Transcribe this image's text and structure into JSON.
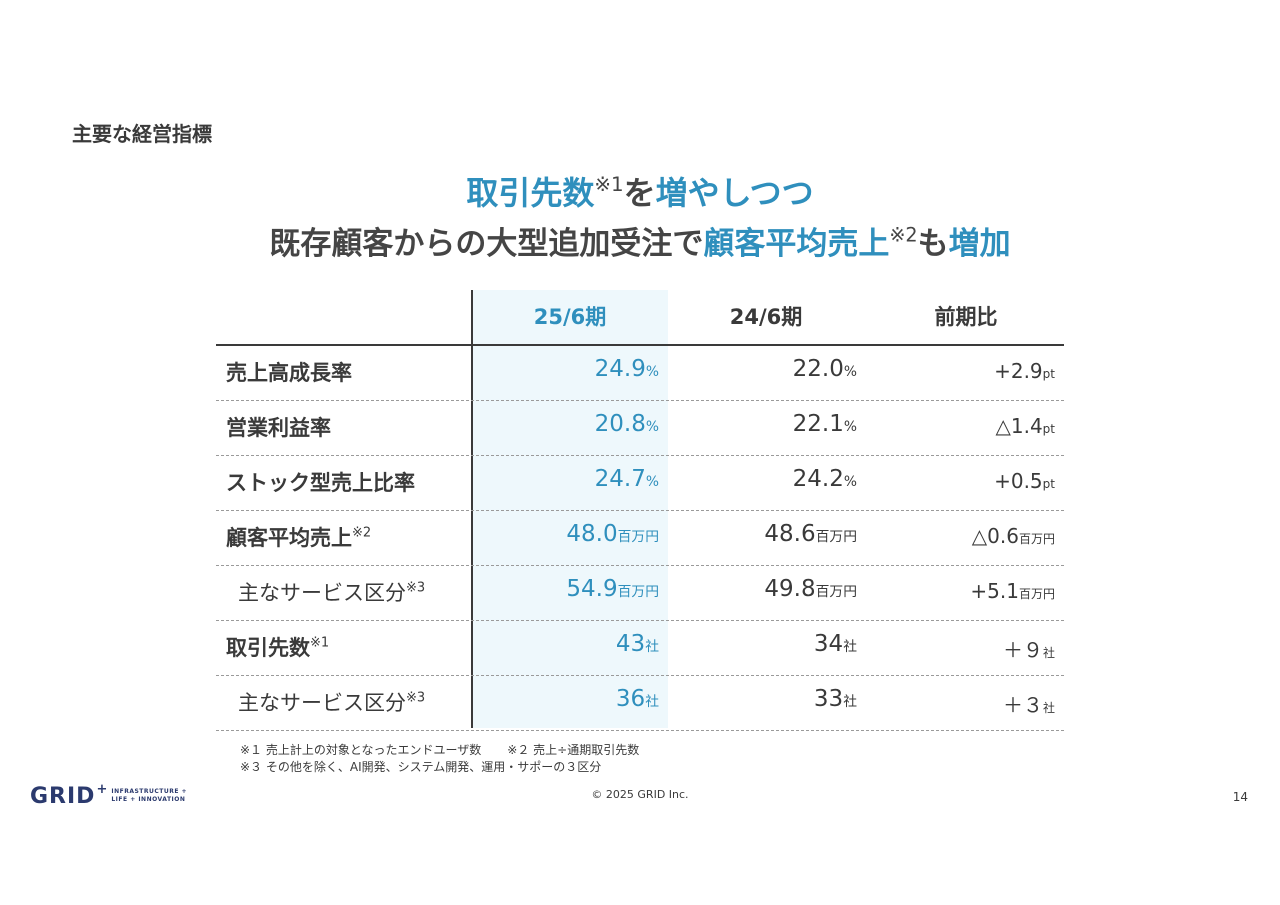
{
  "section_title": "主要な経営指標",
  "headline": {
    "line1": [
      {
        "text": "取引先数",
        "color": "blue"
      },
      {
        "note": "※1"
      },
      {
        "text": "を",
        "color": "dark"
      },
      {
        "text": "増やしつつ",
        "color": "blue"
      }
    ],
    "line2": [
      {
        "text": "既存顧客からの大型追加受注で",
        "color": "dark"
      },
      {
        "text": "顧客平均売上",
        "color": "blue"
      },
      {
        "note": "※2"
      },
      {
        "text": "も",
        "color": "dark"
      },
      {
        "text": "増加",
        "color": "blue"
      }
    ]
  },
  "table": {
    "headers": [
      "25/6期",
      "24/6期",
      "前期比"
    ],
    "rows": [
      {
        "label": "売上高成長率",
        "note": "",
        "sub": false,
        "cells": [
          {
            "v": "24.9",
            "u": "%"
          },
          {
            "v": "22.0",
            "u": "%"
          },
          {
            "v": "+2.9",
            "u": "pt"
          }
        ]
      },
      {
        "label": "営業利益率",
        "note": "",
        "sub": false,
        "cells": [
          {
            "v": "20.8",
            "u": "%"
          },
          {
            "v": "22.1",
            "u": "%"
          },
          {
            "v": "△1.4",
            "u": "pt"
          }
        ]
      },
      {
        "label": "ストック型売上比率",
        "note": "",
        "sub": false,
        "cells": [
          {
            "v": "24.7",
            "u": "%"
          },
          {
            "v": "24.2",
            "u": "%"
          },
          {
            "v": "+0.5",
            "u": "pt"
          }
        ]
      },
      {
        "label": "顧客平均売上",
        "note": "※2",
        "sub": false,
        "cells": [
          {
            "v": "48.0",
            "u": "百万円"
          },
          {
            "v": "48.6",
            "u": "百万円"
          },
          {
            "v": "△0.6",
            "u": "百万円"
          }
        ]
      },
      {
        "label": "主なサービス区分",
        "note": "※3",
        "sub": true,
        "cells": [
          {
            "v": "54.9",
            "u": "百万円"
          },
          {
            "v": "49.8",
            "u": "百万円"
          },
          {
            "v": "+5.1",
            "u": "百万円"
          }
        ]
      },
      {
        "label": "取引先数",
        "note": "※1",
        "sub": false,
        "cells": [
          {
            "v": "43",
            "u": "社"
          },
          {
            "v": "34",
            "u": "社"
          },
          {
            "v": "＋９",
            "u": "社"
          }
        ]
      },
      {
        "label": "主なサービス区分",
        "note": "※3",
        "sub": true,
        "cells": [
          {
            "v": "36",
            "u": "社"
          },
          {
            "v": "33",
            "u": "社"
          },
          {
            "v": "＋３",
            "u": "社"
          }
        ]
      }
    ]
  },
  "footnotes": {
    "line1_a": "※１ 売上計上の対象となったエンドユーザ数",
    "line1_b": "※２ 売上÷通期取引先数",
    "line2": "※３ その他を除く、AI開発、システム開発、運用・サポーの３区分"
  },
  "footer": {
    "logo_word": "GRID",
    "logo_plus": "+",
    "logo_tag_line1": "INFRASTRUCTURE +",
    "logo_tag_line2": "LIFE + INNOVATION",
    "copyright": "© 2025 GRID Inc.",
    "page_number": "14"
  },
  "colors": {
    "accent_blue": "#2f8fbd",
    "highlight_bg": "#eef8fc",
    "text_dark": "#3a3a3a",
    "logo_navy": "#2b3a6e"
  }
}
